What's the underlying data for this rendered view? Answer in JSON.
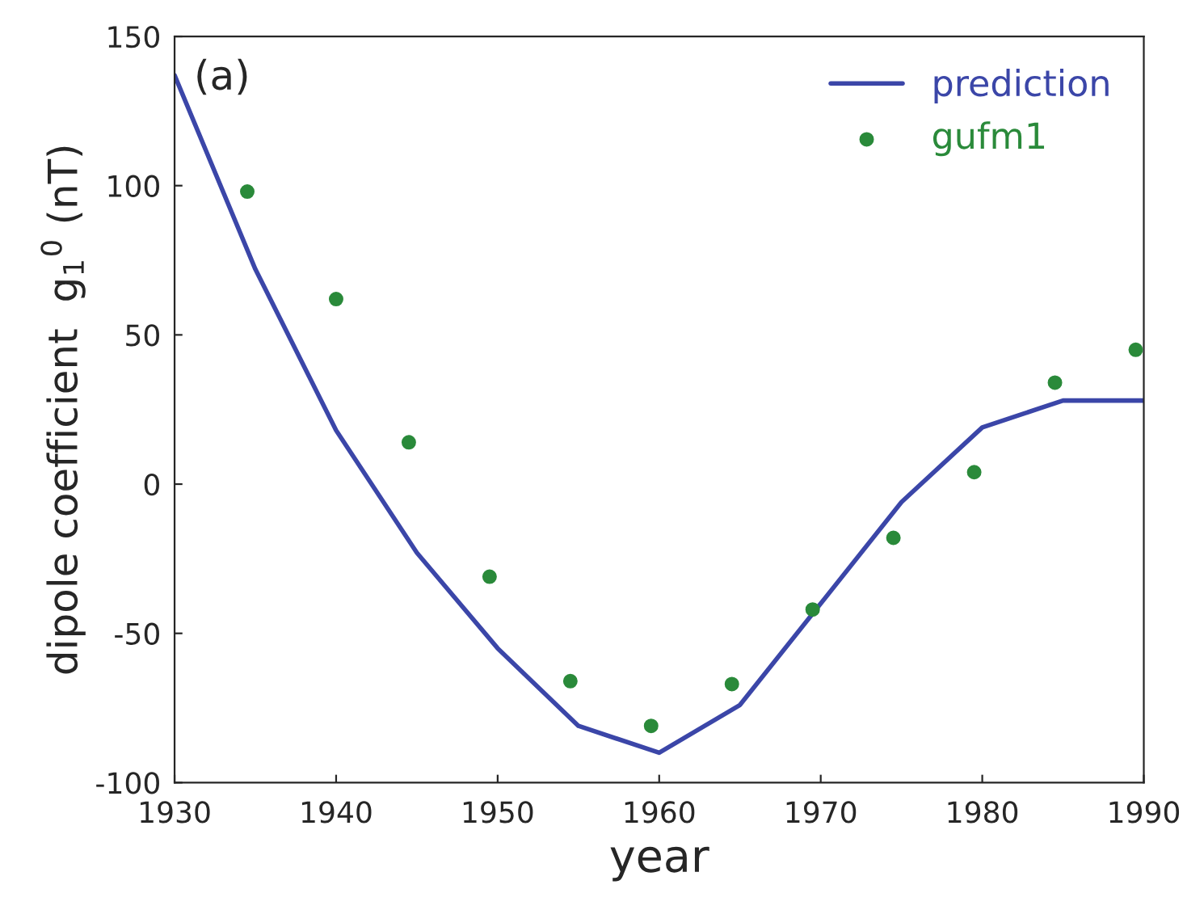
{
  "chart_data": {
    "type": "line",
    "xlabel": "year",
    "ylabel": "dipole coefficient  g$_{1}$$^{0}$ (nT)",
    "annotations": [
      "(a)"
    ],
    "xlim": [
      1930,
      1990
    ],
    "ylim": [
      -100,
      150
    ],
    "xticks": [
      1930,
      1940,
      1950,
      1960,
      1970,
      1980,
      1990
    ],
    "yticks": [
      -100,
      -50,
      0,
      50,
      100,
      150
    ],
    "grid": false,
    "legend": "top right",
    "series": [
      {
        "name": "prediction",
        "color": "#3b46a8",
        "marker": "none",
        "x": [
          1930,
          1935,
          1940,
          1945,
          1950,
          1955,
          1960,
          1965,
          1970,
          1975,
          1980,
          1985,
          1990
        ],
        "values": [
          137,
          72,
          18,
          -23,
          -55,
          -81,
          -90,
          -74,
          -40,
          -6,
          19,
          28,
          28
        ]
      },
      {
        "name": "gufm1",
        "type": "scatter",
        "color": "#2a8a3a",
        "marker": "circle",
        "x": [
          1934.5,
          1940,
          1944.5,
          1949.5,
          1954.5,
          1959.5,
          1964.5,
          1969.5,
          1974.5,
          1979.5,
          1984.5,
          1989.5
        ],
        "values": [
          98,
          62,
          14,
          -31,
          -66,
          -81,
          -67,
          -42,
          -18,
          4,
          34,
          45
        ]
      }
    ]
  }
}
